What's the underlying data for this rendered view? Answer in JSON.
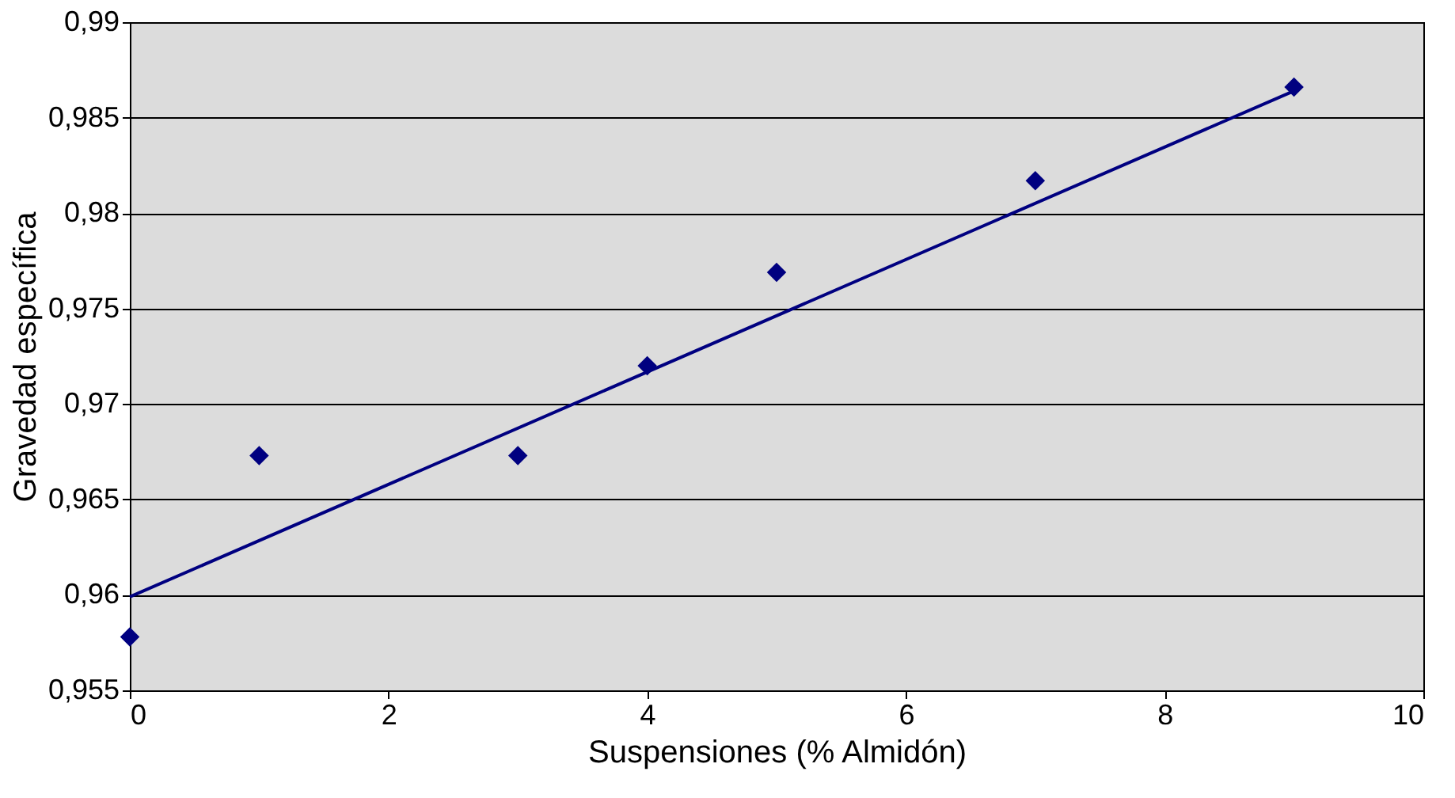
{
  "chart_data": {
    "type": "scatter",
    "xlabel": "Suspensiones (% Almidón)",
    "ylabel": "Gravedad específica",
    "series": [
      {
        "type": "scatter",
        "color": "#000080",
        "marker": "diamond",
        "x": [
          0,
          1,
          3,
          4,
          5,
          7,
          9
        ],
        "values": [
          0.9578,
          0.9673,
          0.9673,
          0.972,
          0.9769,
          0.9817,
          0.9866
        ]
      },
      {
        "type": "line",
        "color": "#000080",
        "marker": "none",
        "line_style": "solid",
        "x": [
          0,
          9
        ],
        "values": [
          0.9599,
          0.9864
        ]
      }
    ],
    "xlim": [
      0,
      10
    ],
    "xticks": [
      0,
      2,
      4,
      6,
      8,
      10
    ],
    "ylim": [
      0.955,
      0.99
    ],
    "yticks": [
      {
        "value": 0.955,
        "label": "0,955"
      },
      {
        "value": 0.96,
        "label": "0,96"
      },
      {
        "value": 0.965,
        "label": "0,965"
      },
      {
        "value": 0.97,
        "label": "0,97"
      },
      {
        "value": 0.975,
        "label": "0,975"
      },
      {
        "value": 0.98,
        "label": "0,98"
      },
      {
        "value": 0.985,
        "label": "0,985"
      },
      {
        "value": 0.99,
        "label": "0,99"
      }
    ],
    "grid": "y"
  }
}
